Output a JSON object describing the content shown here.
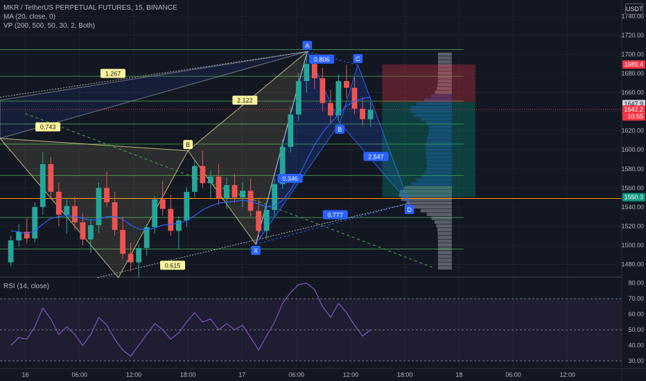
{
  "legend": {
    "symbol": "MKR / TetherUS PERPETUAL FUTURES, 15, BINANCE",
    "ma": "MA (20, close, 0)",
    "vp": "VP (200, 500, 50, 30, 2, Both)",
    "rsi": "RSI (14, close)"
  },
  "currency": "USDT",
  "colors": {
    "background": "#131722",
    "up": "#26a69a",
    "down": "#ef5350",
    "pattern_blue": "#2962ff",
    "fib_green": "#4caf50",
    "support_orange": "#ff9800",
    "rsi_line": "#7e57c2",
    "label_yellow": "#fff59d",
    "target_red": "#f23645",
    "stop_green": "#089981"
  },
  "price_axis": {
    "ticks": [
      "1740.00",
      "1720.00",
      "1700.00",
      "1680.00",
      "1660.00",
      "1640.00",
      "1620.00",
      "1600.00",
      "1580.00",
      "1560.00",
      "1540.00",
      "1520.00",
      "1500.00",
      "1480.00"
    ],
    "tick_values": [
      1740,
      1720,
      1700,
      1680,
      1660,
      1640,
      1620,
      1600,
      1580,
      1560,
      1540,
      1520,
      1500,
      1480
    ],
    "range": [
      1468,
      1757
    ]
  },
  "price_badges": [
    {
      "text": "1689.4",
      "value": 1689.4,
      "color": "#f23645",
      "sub": ""
    },
    {
      "text": "1647.9",
      "value": 1647.9,
      "color": "#d1d4dc",
      "sub": ""
    },
    {
      "text": "1642.2",
      "value": 1642.2,
      "color": "#f23645",
      "sub": "10:55"
    },
    {
      "text": "1550.3",
      "value": 1550.3,
      "color": "#089981",
      "sub": ""
    }
  ],
  "rsi_axis": {
    "ticks": [
      "80.00",
      "70.00",
      "60.00",
      "50.00",
      "40.00",
      "30.00"
    ],
    "tick_values": [
      80,
      70,
      60,
      50,
      40,
      30
    ],
    "range": [
      26,
      83
    ],
    "band": [
      30,
      70
    ]
  },
  "time_axis": {
    "labels": [
      "16",
      "06:00",
      "12:00",
      "18:00",
      "17",
      "06:00",
      "12:00",
      "18:00",
      "18",
      "06:00",
      "12:00"
    ],
    "values": [
      0,
      6,
      12,
      18,
      24,
      30,
      36,
      42,
      48,
      54,
      60
    ],
    "range": [
      -2.8,
      66
    ]
  },
  "harmonic": {
    "points": [
      {
        "label": "X",
        "t": 25.5,
        "price": 1501
      },
      {
        "label": "A",
        "t": 31.2,
        "price": 1703
      },
      {
        "label": "B",
        "t": 34.8,
        "price": 1628
      },
      {
        "label": "C",
        "t": 36.8,
        "price": 1689
      },
      {
        "label": "D",
        "t": 42.5,
        "price": 1544
      }
    ],
    "ratios": [
      {
        "text": "0.806",
        "t": 32.8,
        "price": 1695
      },
      {
        "text": "2.547",
        "t": 38.8,
        "price": 1593
      },
      {
        "text": "0.346",
        "t": 29.3,
        "price": 1570
      },
      {
        "text": "0.777",
        "t": 34.3,
        "price": 1532
      }
    ]
  },
  "pattern_left": {
    "points": [
      {
        "label": "B",
        "t": 18.0,
        "price": 1599
      }
    ],
    "ratios": [
      {
        "text": "1.267",
        "t": 9.7,
        "price": 1680
      },
      {
        "text": "0.743",
        "t": 2.5,
        "price": 1624
      },
      {
        "text": "2.122",
        "t": 24.3,
        "price": 1652
      },
      {
        "text": "0.615",
        "t": 16.3,
        "price": 1479
      }
    ]
  },
  "fib_lines": [
    1705,
    1677,
    1651,
    1627,
    1606,
    1573,
    1529,
    1496
  ],
  "support_level": 1549,
  "position": {
    "t_start": 39.5,
    "t_end": 49.8,
    "target": 1689.4,
    "entry": 1650,
    "stop": 1550.3
  },
  "chart_data": {
    "type": "candlestick",
    "series": [
      {
        "name": "MKR / TetherUS PERPETUAL FUTURES",
        "ohlc": [
          [
            1482,
            1510,
            1478,
            1505
          ],
          [
            1505,
            1522,
            1498,
            1514
          ],
          [
            1514,
            1528,
            1502,
            1507
          ],
          [
            1507,
            1545,
            1503,
            1540
          ],
          [
            1540,
            1598,
            1532,
            1585
          ],
          [
            1585,
            1592,
            1548,
            1556
          ],
          [
            1556,
            1566,
            1520,
            1532
          ],
          [
            1532,
            1548,
            1512,
            1541
          ],
          [
            1541,
            1551,
            1516,
            1524
          ],
          [
            1524,
            1533,
            1500,
            1506
          ],
          [
            1506,
            1528,
            1492,
            1521
          ],
          [
            1521,
            1566,
            1513,
            1560
          ],
          [
            1560,
            1577,
            1540,
            1545
          ],
          [
            1545,
            1556,
            1510,
            1516
          ],
          [
            1516,
            1530,
            1486,
            1491
          ],
          [
            1491,
            1503,
            1472,
            1482
          ],
          [
            1482,
            1501,
            1466,
            1497
          ],
          [
            1497,
            1522,
            1489,
            1519
          ],
          [
            1519,
            1552,
            1512,
            1548
          ],
          [
            1548,
            1567,
            1531,
            1538
          ],
          [
            1538,
            1553,
            1510,
            1515
          ],
          [
            1515,
            1530,
            1496,
            1526
          ],
          [
            1526,
            1561,
            1519,
            1556
          ],
          [
            1556,
            1590,
            1550,
            1583
          ],
          [
            1583,
            1599,
            1560,
            1565
          ],
          [
            1565,
            1578,
            1548,
            1572
          ],
          [
            1572,
            1585,
            1542,
            1549
          ],
          [
            1549,
            1571,
            1538,
            1563
          ],
          [
            1563,
            1575,
            1544,
            1550
          ],
          [
            1550,
            1566,
            1540,
            1557
          ],
          [
            1557,
            1570,
            1530,
            1536
          ],
          [
            1536,
            1548,
            1508,
            1515
          ],
          [
            1515,
            1542,
            1506,
            1537
          ],
          [
            1537,
            1570,
            1530,
            1564
          ],
          [
            1564,
            1611,
            1559,
            1603
          ],
          [
            1603,
            1645,
            1597,
            1637
          ],
          [
            1637,
            1681,
            1630,
            1672
          ],
          [
            1672,
            1703,
            1660,
            1690
          ],
          [
            1690,
            1698,
            1664,
            1675
          ],
          [
            1675,
            1686,
            1640,
            1649
          ],
          [
            1649,
            1663,
            1628,
            1636
          ],
          [
            1636,
            1679,
            1630,
            1672
          ],
          [
            1672,
            1689,
            1654,
            1665
          ],
          [
            1665,
            1676,
            1637,
            1643
          ],
          [
            1643,
            1655,
            1625,
            1632
          ],
          [
            1632,
            1650,
            1624,
            1642
          ]
        ]
      },
      {
        "name": "MA (20, close, 0)",
        "values": [
          1515,
          1514,
          1512,
          1515,
          1522,
          1528,
          1530,
          1531,
          1530,
          1528,
          1526,
          1527,
          1530,
          1530,
          1527,
          1521,
          1517,
          1516,
          1518,
          1521,
          1522,
          1523,
          1526,
          1531,
          1537,
          1541,
          1544,
          1545,
          1546,
          1547,
          1546,
          1543,
          1540,
          1541,
          1547,
          1558,
          1572,
          1589,
          1605,
          1618,
          1628,
          1637,
          1646,
          1651,
          1654,
          1655
        ]
      },
      {
        "name": "RSI (14, close)",
        "values": [
          40,
          45,
          44,
          52,
          64,
          57,
          47,
          52,
          47,
          40,
          47,
          58,
          53,
          44,
          37,
          33,
          40,
          47,
          54,
          50,
          44,
          48,
          55,
          61,
          55,
          57,
          50,
          54,
          50,
          53,
          45,
          37,
          46,
          55,
          67,
          74,
          79,
          80,
          76,
          65,
          58,
          67,
          61,
          53,
          46,
          50
        ]
      }
    ]
  }
}
